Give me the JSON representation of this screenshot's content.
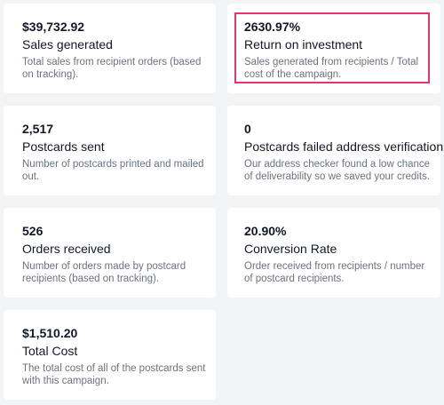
{
  "cards": [
    {
      "value": "$39,732.92",
      "title": "Sales generated",
      "description": "Total sales from recipient orders (based on tracking)."
    },
    {
      "value": "2630.97%",
      "title": "Return on investment",
      "description": "Sales generated from recipients / Total cost of the campaign."
    },
    {
      "value": "2,517",
      "title": "Postcards sent",
      "description": "Number of postcards printed and mailed out."
    },
    {
      "value": "0",
      "title": "Postcards failed address verification",
      "description": "Our address checker found a low chance of deliverability so we saved your credits."
    },
    {
      "value": "526",
      "title": "Orders received",
      "description": "Number of orders made by postcard recipients (based on tracking)."
    },
    {
      "value": "20.90%",
      "title": "Conversion Rate",
      "description": "Order received from recipients / number of postcard recipients."
    },
    {
      "value": "$1,510.20",
      "title": "Total Cost",
      "description": "The total cost of all of the postcards sent with this campaign."
    }
  ],
  "highlight_color": "#e8336d"
}
